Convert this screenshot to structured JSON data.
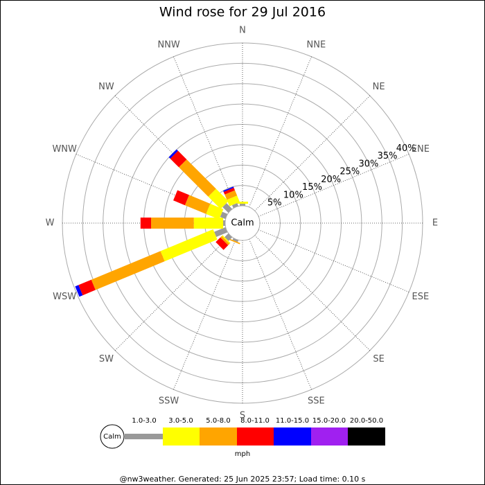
{
  "chart_data": {
    "type": "wind_rose",
    "title": "Wind rose for 29 Jul 2016",
    "directions": [
      "N",
      "NNE",
      "NE",
      "ENE",
      "E",
      "ESE",
      "SE",
      "SSE",
      "S",
      "SSW",
      "SW",
      "WSW",
      "W",
      "WNW",
      "NW",
      "NNW"
    ],
    "calm_label": "Calm",
    "unit": "mph",
    "rlim": [
      0,
      40
    ],
    "rticks": [
      {
        "value": 5,
        "label": "5%"
      },
      {
        "value": 10,
        "label": "10%"
      },
      {
        "value": 15,
        "label": "15%"
      },
      {
        "value": 20,
        "label": "20%"
      },
      {
        "value": 25,
        "label": "25%"
      },
      {
        "value": 30,
        "label": "30%"
      },
      {
        "value": 35,
        "label": "35%"
      },
      {
        "value": 40,
        "label": "40%"
      }
    ],
    "series": [
      {
        "name": "1.0-3.0",
        "color": "#999999",
        "values": [
          0.5,
          0,
          0,
          0,
          0,
          0,
          0,
          0,
          0,
          0.5,
          1.3,
          3,
          0.5,
          1.4,
          2,
          0.8
        ]
      },
      {
        "name": "3.0-5.0",
        "color": "#ffff00",
        "values": [
          0.5,
          0,
          0,
          0,
          0,
          0,
          0,
          0,
          0,
          0,
          0.3,
          14,
          7.2,
          3.5,
          4.3,
          1.7
        ]
      },
      {
        "name": "5.0-8.0",
        "color": "#ffa500",
        "values": [
          0,
          0,
          0,
          0,
          0,
          0,
          0,
          0,
          0,
          0.3,
          0.5,
          18.4,
          10.5,
          5.6,
          10.2,
          1.4
        ]
      },
      {
        "name": "8.0-11.0",
        "color": "#ff0000",
        "values": [
          0,
          0,
          0,
          0,
          0,
          0,
          0,
          0,
          0,
          0,
          1.6,
          3.4,
          2.6,
          3.1,
          3,
          0.7
        ]
      },
      {
        "name": "11.0-15.0",
        "color": "#0000ff",
        "values": [
          0,
          0,
          0,
          0,
          0,
          0,
          0,
          0,
          0,
          0,
          0,
          0.9,
          0,
          0,
          0.5,
          0.3
        ]
      },
      {
        "name": "15.0-20.0",
        "color": "#a020f0",
        "values": [
          0,
          0,
          0,
          0,
          0,
          0,
          0,
          0,
          0,
          0,
          0,
          0,
          0,
          0,
          0,
          0
        ]
      },
      {
        "name": "20.0-50.0",
        "color": "#000000",
        "values": [
          0,
          0,
          0,
          0,
          0,
          0,
          0,
          0,
          0,
          0,
          0,
          0,
          0,
          0,
          0,
          0
        ]
      }
    ]
  },
  "footer": "@nw3weather. Generated: 25 Jun 2025 23:57; Load time: 0.10 s"
}
